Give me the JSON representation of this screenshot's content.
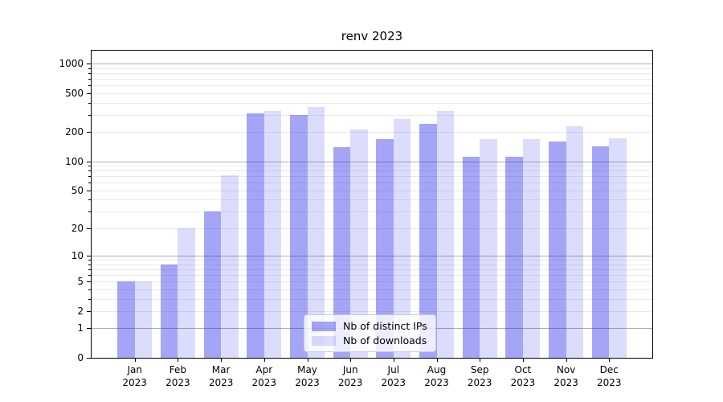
{
  "chart_data": {
    "type": "bar",
    "title": "renv 2023",
    "categories": [
      "Jan 2023",
      "Feb 2023",
      "Mar 2023",
      "Apr 2023",
      "May 2023",
      "Jun 2023",
      "Jul 2023",
      "Aug 2023",
      "Sep 2023",
      "Oct 2023",
      "Nov 2023",
      "Dec 2023"
    ],
    "x_tick_months": [
      "Jan",
      "Feb",
      "Mar",
      "Apr",
      "May",
      "Jun",
      "Jul",
      "Aug",
      "Sep",
      "Oct",
      "Nov",
      "Dec"
    ],
    "x_tick_year": "2023",
    "series": [
      {
        "name": "Nb of distinct IPs",
        "color": "rgba(30,30,235,0.40)",
        "values": [
          5,
          8,
          30,
          310,
          300,
          140,
          170,
          242,
          111,
          112,
          160,
          143
        ]
      },
      {
        "name": "Nb of downloads",
        "color": "rgba(30,30,235,0.155)",
        "values": [
          5,
          20,
          72,
          330,
          362,
          212,
          272,
          330,
          168,
          168,
          230,
          172
        ]
      }
    ],
    "yscale": "log1p",
    "ylim": [
      0,
      1355
    ],
    "y_tick_values": [
      0,
      1,
      2,
      5,
      10,
      20,
      50,
      100,
      200,
      500,
      1000
    ],
    "y_major_gridlines": [
      1,
      10,
      100,
      1000
    ],
    "y_minor_gridlines": [
      2,
      3,
      4,
      5,
      6,
      7,
      8,
      9,
      20,
      30,
      40,
      50,
      60,
      70,
      80,
      90,
      200,
      300,
      400,
      500,
      600,
      700,
      800,
      900
    ],
    "grid": true,
    "legend_position": "lower center",
    "xlabel": "",
    "ylabel": ""
  },
  "colors": {
    "background": "#ffffff",
    "axis": "#000000",
    "major_grid": "#b0b0b0",
    "minor_grid": "#eaeaea",
    "text": "#000000",
    "legend_border": "#cccccc",
    "legend_bg": "rgba(255,255,255,0.8)"
  }
}
